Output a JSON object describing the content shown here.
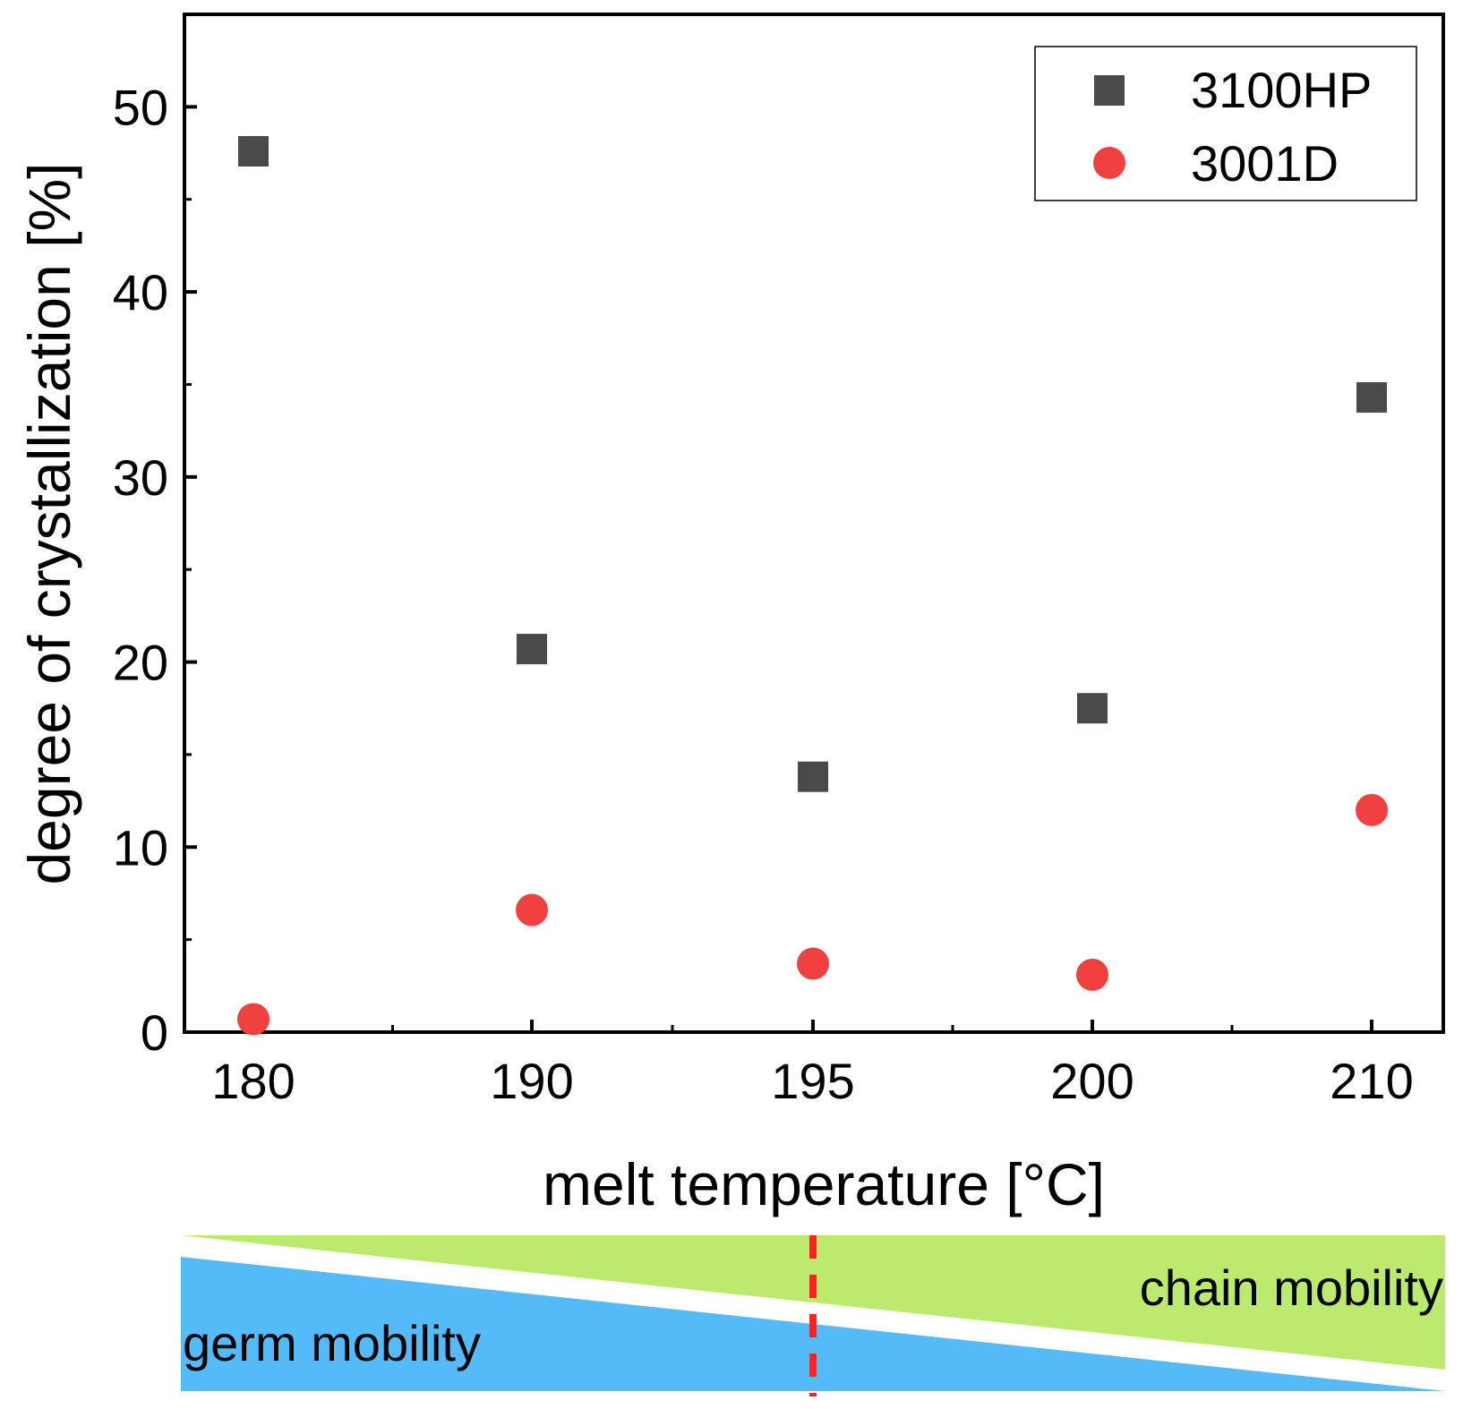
{
  "chart_data": {
    "type": "scatter",
    "title": "",
    "xlabel": "melt temperature [°C]",
    "ylabel": "degree of crystallization [%]",
    "x_categories": [
      "180",
      "190",
      "195",
      "200",
      "210"
    ],
    "ylim": [
      0,
      55
    ],
    "y_major_ticks": [
      0,
      10,
      20,
      30,
      40,
      50
    ],
    "y_minor_ticks": [
      5,
      15,
      25,
      35,
      45
    ],
    "grid": false,
    "legend_position": "top-right",
    "series": [
      {
        "name": "3100HP",
        "marker": "square",
        "color": "#4a4a4a",
        "values": [
          47.6,
          20.7,
          13.8,
          17.5,
          34.3
        ]
      },
      {
        "name": "3001D",
        "marker": "circle",
        "color": "#f04040",
        "values": [
          0.7,
          6.6,
          3.7,
          3.1,
          12.0
        ]
      }
    ]
  },
  "mobility_band": {
    "germ_label": "germ mobility",
    "chain_label": "chain mobility",
    "germ_color": "#55bbf8",
    "chain_color": "#bbeb6e",
    "divider_color": "#ff2020",
    "divider_category": "195"
  }
}
